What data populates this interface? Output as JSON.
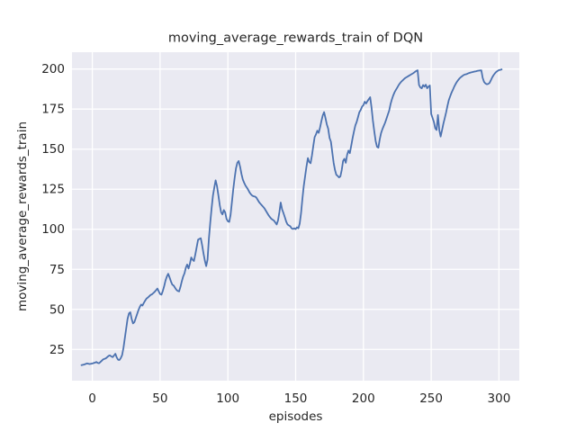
{
  "figure": {
    "background": "#ffffff"
  },
  "chart_data": {
    "type": "line",
    "title": "moving_average_rewards_train of DQN",
    "xlabel": "episodes",
    "ylabel": "moving_average_rewards_train",
    "x_ticks": [
      0,
      50,
      100,
      150,
      200,
      250,
      300
    ],
    "y_ticks": [
      25,
      50,
      75,
      100,
      125,
      150,
      175,
      200
    ],
    "xlim": [
      -15,
      315
    ],
    "ylim": [
      5.5,
      210.5
    ],
    "grid": true,
    "legend": "none",
    "style": {
      "plot_bg": "#EAEAF2",
      "grid_color": "#FFFFFF",
      "line_color": "#4C72B0",
      "text_color": "#262626",
      "line_width": 1.8,
      "grid_width": 1.3
    },
    "series": [
      {
        "name": "moving_average_rewards_train",
        "points": [
          [
            -8,
            15.2
          ],
          [
            -6,
            15.6
          ],
          [
            -4,
            16.3
          ],
          [
            -2,
            15.9
          ],
          [
            0,
            16.2
          ],
          [
            2,
            16.8
          ],
          [
            3,
            17.2
          ],
          [
            4,
            16.6
          ],
          [
            5,
            16.4
          ],
          [
            6,
            17.2
          ],
          [
            8,
            18.8
          ],
          [
            10,
            19.5
          ],
          [
            12,
            21.0
          ],
          [
            13,
            21.3
          ],
          [
            14,
            20.6
          ],
          [
            15,
            20.2
          ],
          [
            16,
            21.2
          ],
          [
            17,
            22.3
          ],
          [
            18,
            20.0
          ],
          [
            19,
            18.6
          ],
          [
            20,
            18.4
          ],
          [
            21,
            19.6
          ],
          [
            22,
            21.5
          ],
          [
            23,
            26.0
          ],
          [
            24,
            32.0
          ],
          [
            25,
            38.0
          ],
          [
            26,
            44.0
          ],
          [
            27,
            47.5
          ],
          [
            28,
            48.2
          ],
          [
            29,
            44.0
          ],
          [
            30,
            41.3
          ],
          [
            31,
            42.0
          ],
          [
            32,
            44.5
          ],
          [
            33,
            47.0
          ],
          [
            34,
            49.5
          ],
          [
            35,
            51.5
          ],
          [
            36,
            53.0
          ],
          [
            37,
            52.4
          ],
          [
            38,
            54.0
          ],
          [
            39,
            55.5
          ],
          [
            40,
            56.8
          ],
          [
            41,
            57.4
          ],
          [
            42,
            58.2
          ],
          [
            43,
            59.0
          ],
          [
            44,
            59.4
          ],
          [
            45,
            60.2
          ],
          [
            46,
            61.0
          ],
          [
            47,
            62.0
          ],
          [
            48,
            63.0
          ],
          [
            49,
            61.2
          ],
          [
            50,
            59.6
          ],
          [
            51,
            59.2
          ],
          [
            52,
            61.5
          ],
          [
            53,
            64.5
          ],
          [
            54,
            68.0
          ],
          [
            55,
            70.5
          ],
          [
            56,
            72.2
          ],
          [
            57,
            70.0
          ],
          [
            58,
            67.5
          ],
          [
            59,
            65.5
          ],
          [
            60,
            64.8
          ],
          [
            61,
            63.5
          ],
          [
            62,
            62.2
          ],
          [
            63,
            61.5
          ],
          [
            64,
            61.2
          ],
          [
            65,
            64.0
          ],
          [
            66,
            67.5
          ],
          [
            67,
            70.5
          ],
          [
            68,
            72.5
          ],
          [
            69,
            76.0
          ],
          [
            70,
            78.0
          ],
          [
            71,
            75.5
          ],
          [
            72,
            78.5
          ],
          [
            73,
            82.4
          ],
          [
            74,
            81.0
          ],
          [
            75,
            80.2
          ],
          [
            76,
            84.5
          ],
          [
            77,
            89.0
          ],
          [
            78,
            93.5
          ],
          [
            79,
            94.0
          ],
          [
            80,
            94.4
          ],
          [
            81,
            90.0
          ],
          [
            82,
            85.0
          ],
          [
            83,
            80.5
          ],
          [
            84,
            77.0
          ],
          [
            85,
            81.0
          ],
          [
            86,
            94.0
          ],
          [
            87,
            104.0
          ],
          [
            88,
            113.0
          ],
          [
            89,
            121.0
          ],
          [
            90,
            126.0
          ],
          [
            91,
            130.5
          ],
          [
            92,
            127.0
          ],
          [
            93,
            121.0
          ],
          [
            94,
            115.0
          ],
          [
            95,
            110.5
          ],
          [
            96,
            109.3
          ],
          [
            97,
            112.0
          ],
          [
            98,
            110.5
          ],
          [
            99,
            106.5
          ],
          [
            100,
            105.0
          ],
          [
            101,
            104.6
          ],
          [
            102,
            109.0
          ],
          [
            103,
            117.0
          ],
          [
            104,
            125.0
          ],
          [
            105,
            132.0
          ],
          [
            106,
            138.0
          ],
          [
            107,
            141.5
          ],
          [
            108,
            142.6
          ],
          [
            109,
            139.0
          ],
          [
            110,
            134.5
          ],
          [
            111,
            131.0
          ],
          [
            112,
            129.0
          ],
          [
            113,
            127.2
          ],
          [
            114,
            126.0
          ],
          [
            115,
            124.6
          ],
          [
            116,
            123.0
          ],
          [
            117,
            121.8
          ],
          [
            118,
            121.0
          ],
          [
            119,
            120.6
          ],
          [
            120,
            120.4
          ],
          [
            121,
            119.8
          ],
          [
            122,
            118.4
          ],
          [
            123,
            117.0
          ],
          [
            124,
            116.0
          ],
          [
            125,
            115.0
          ],
          [
            126,
            114.0
          ],
          [
            127,
            113.0
          ],
          [
            128,
            111.6
          ],
          [
            129,
            110.2
          ],
          [
            130,
            108.8
          ],
          [
            131,
            107.6
          ],
          [
            132,
            106.6
          ],
          [
            133,
            106.0
          ],
          [
            134,
            105.4
          ],
          [
            135,
            104.2
          ],
          [
            136,
            103.0
          ],
          [
            137,
            105.5
          ],
          [
            138,
            110.5
          ],
          [
            139,
            116.7
          ],
          [
            140,
            112.5
          ],
          [
            141,
            110.2
          ],
          [
            142,
            107.5
          ],
          [
            143,
            104.8
          ],
          [
            144,
            103.0
          ],
          [
            145,
            102.4
          ],
          [
            146,
            101.9
          ],
          [
            147,
            100.6
          ],
          [
            148,
            100.2
          ],
          [
            149,
            100.6
          ],
          [
            150,
            100.1
          ],
          [
            151,
            101.2
          ],
          [
            152,
            100.6
          ],
          [
            153,
            103.5
          ],
          [
            154,
            110.0
          ],
          [
            155,
            119.0
          ],
          [
            156,
            127.0
          ],
          [
            157,
            133.0
          ],
          [
            158,
            139.0
          ],
          [
            159,
            144.4
          ],
          [
            160,
            142.0
          ],
          [
            161,
            141.2
          ],
          [
            162,
            146.0
          ],
          [
            163,
            152.0
          ],
          [
            164,
            157.5
          ],
          [
            165,
            159.3
          ],
          [
            166,
            161.5
          ],
          [
            167,
            160.2
          ],
          [
            168,
            163.5
          ],
          [
            169,
            167.5
          ],
          [
            170,
            171.0
          ],
          [
            171,
            173.1
          ],
          [
            172,
            169.5
          ],
          [
            173,
            165.5
          ],
          [
            174,
            162.9
          ],
          [
            175,
            157.0
          ],
          [
            176,
            154.6
          ],
          [
            177,
            148.0
          ],
          [
            178,
            141.5
          ],
          [
            179,
            137.0
          ],
          [
            180,
            134.0
          ],
          [
            181,
            133.3
          ],
          [
            182,
            132.4
          ],
          [
            183,
            133.0
          ],
          [
            184,
            137.0
          ],
          [
            185,
            142.6
          ],
          [
            186,
            144.0
          ],
          [
            187,
            141.5
          ],
          [
            188,
            146.5
          ],
          [
            189,
            149.1
          ],
          [
            190,
            147.5
          ],
          [
            191,
            152.0
          ],
          [
            192,
            157.0
          ],
          [
            193,
            161.0
          ],
          [
            194,
            164.8
          ],
          [
            195,
            167.0
          ],
          [
            196,
            170.0
          ],
          [
            197,
            173.1
          ],
          [
            198,
            174.5
          ],
          [
            199,
            176.5
          ],
          [
            200,
            177.5
          ],
          [
            201,
            179.6
          ],
          [
            202,
            178.5
          ],
          [
            203,
            180.0
          ],
          [
            204,
            181.2
          ],
          [
            205,
            182.4
          ],
          [
            206,
            176.0
          ],
          [
            207,
            168.0
          ],
          [
            208,
            161.0
          ],
          [
            209,
            155.0
          ],
          [
            210,
            151.5
          ],
          [
            211,
            150.9
          ],
          [
            212,
            156.0
          ],
          [
            213,
            160.0
          ],
          [
            214,
            162.5
          ],
          [
            215,
            164.5
          ],
          [
            216,
            166.5
          ],
          [
            217,
            169.0
          ],
          [
            218,
            171.5
          ],
          [
            219,
            174.0
          ],
          [
            220,
            178.0
          ],
          [
            221,
            181.0
          ],
          [
            222,
            183.5
          ],
          [
            223,
            185.5
          ],
          [
            224,
            187.0
          ],
          [
            225,
            188.5
          ],
          [
            226,
            190.0
          ],
          [
            227,
            191.2
          ],
          [
            228,
            192.2
          ],
          [
            229,
            193.0
          ],
          [
            230,
            193.8
          ],
          [
            231,
            194.5
          ],
          [
            232,
            195.0
          ],
          [
            233,
            195.5
          ],
          [
            234,
            196.0
          ],
          [
            235,
            196.5
          ],
          [
            236,
            197.0
          ],
          [
            237,
            197.5
          ],
          [
            238,
            198.2
          ],
          [
            239,
            198.8
          ],
          [
            240,
            199.2
          ],
          [
            241,
            190.0
          ],
          [
            242,
            188.5
          ],
          [
            243,
            188.0
          ],
          [
            244,
            190.0
          ],
          [
            245,
            189.0
          ],
          [
            246,
            190.2
          ],
          [
            247,
            188.0
          ],
          [
            248,
            189.0
          ],
          [
            249,
            189.8
          ],
          [
            250,
            172.0
          ],
          [
            251,
            169.5
          ],
          [
            252,
            167.0
          ],
          [
            253,
            163.0
          ],
          [
            254,
            162.0
          ],
          [
            255,
            171.3
          ],
          [
            256,
            162.0
          ],
          [
            257,
            157.9
          ],
          [
            258,
            162.0
          ],
          [
            259,
            166.0
          ],
          [
            260,
            169.4
          ],
          [
            261,
            173.0
          ],
          [
            262,
            177.0
          ],
          [
            263,
            180.6
          ],
          [
            264,
            183.0
          ],
          [
            265,
            185.2
          ],
          [
            266,
            187.0
          ],
          [
            267,
            189.0
          ],
          [
            268,
            190.6
          ],
          [
            269,
            192.0
          ],
          [
            270,
            193.2
          ],
          [
            271,
            194.2
          ],
          [
            272,
            195.0
          ],
          [
            273,
            195.6
          ],
          [
            274,
            196.3
          ],
          [
            275,
            196.6
          ],
          [
            276,
            196.8
          ],
          [
            277,
            197.2
          ],
          [
            278,
            197.5
          ],
          [
            279,
            197.8
          ],
          [
            280,
            198.0
          ],
          [
            281,
            198.2
          ],
          [
            282,
            198.4
          ],
          [
            283,
            198.6
          ],
          [
            284,
            198.8
          ],
          [
            285,
            199.0
          ],
          [
            286,
            199.1
          ],
          [
            287,
            199.2
          ],
          [
            288,
            194.5
          ],
          [
            289,
            192.0
          ],
          [
            290,
            191.0
          ],
          [
            291,
            190.5
          ],
          [
            292,
            190.7
          ],
          [
            293,
            191.3
          ],
          [
            294,
            193.0
          ],
          [
            295,
            194.8
          ],
          [
            296,
            196.2
          ],
          [
            297,
            197.3
          ],
          [
            298,
            198.2
          ],
          [
            299,
            198.8
          ],
          [
            300,
            199.3
          ],
          [
            301,
            199.5
          ],
          [
            302,
            199.8
          ]
        ]
      }
    ]
  }
}
